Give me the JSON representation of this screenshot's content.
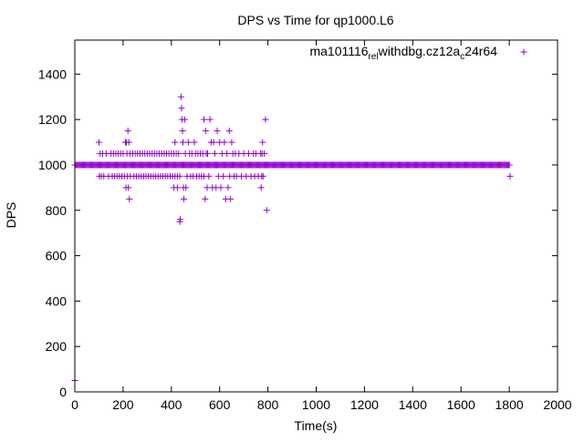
{
  "chart_data": {
    "type": "scatter",
    "title": "DPS vs Time for qp1000.L6",
    "xlabel": "Time(s)",
    "ylabel": "DPS",
    "xlim": [
      0,
      2000
    ],
    "ylim": [
      0,
      1550
    ],
    "xticks": [
      "0",
      "200",
      "400",
      "600",
      "800",
      "1000",
      "1200",
      "1400",
      "1600",
      "1800",
      "2000"
    ],
    "yticks": [
      "0",
      "200",
      "400",
      "600",
      "800",
      "1000",
      "1200",
      "1400"
    ],
    "grid": false,
    "legend_position": "top-right",
    "marker": "plus",
    "series": [
      {
        "name": "ma101116_rel_withdbg.cz12a_c24r64",
        "name_parts": [
          {
            "text": "ma101116",
            "sub": false
          },
          {
            "text": "rel",
            "sub": true
          },
          {
            "text": "withdbg.cz12a",
            "sub": false
          },
          {
            "text": "c",
            "sub": true
          },
          {
            "text": "24r64",
            "sub": false
          }
        ],
        "color": "#9400d3",
        "dense_band": {
          "x_start": 0,
          "x_end": 1800,
          "step": 4,
          "y": 1000
        },
        "points": [
          [
            0,
            50
          ],
          [
            100,
            1100
          ],
          [
            102,
            950
          ],
          [
            105,
            1050
          ],
          [
            110,
            950
          ],
          [
            115,
            1050
          ],
          [
            120,
            950
          ],
          [
            130,
            1050
          ],
          [
            140,
            950
          ],
          [
            150,
            1050
          ],
          [
            155,
            950
          ],
          [
            160,
            1050
          ],
          [
            165,
            950
          ],
          [
            170,
            1050
          ],
          [
            175,
            950
          ],
          [
            180,
            1050
          ],
          [
            185,
            950
          ],
          [
            190,
            1050
          ],
          [
            195,
            950
          ],
          [
            200,
            1050
          ],
          [
            205,
            950
          ],
          [
            210,
            1100
          ],
          [
            212,
            900
          ],
          [
            214,
            1100
          ],
          [
            216,
            1050
          ],
          [
            218,
            950
          ],
          [
            220,
            1150
          ],
          [
            222,
            900
          ],
          [
            224,
            1100
          ],
          [
            226,
            850
          ],
          [
            228,
            1050
          ],
          [
            230,
            950
          ],
          [
            240,
            1050
          ],
          [
            245,
            950
          ],
          [
            250,
            1050
          ],
          [
            255,
            950
          ],
          [
            260,
            1050
          ],
          [
            265,
            950
          ],
          [
            270,
            1050
          ],
          [
            275,
            950
          ],
          [
            280,
            1050
          ],
          [
            285,
            950
          ],
          [
            290,
            1050
          ],
          [
            295,
            950
          ],
          [
            300,
            1050
          ],
          [
            305,
            950
          ],
          [
            310,
            1050
          ],
          [
            315,
            950
          ],
          [
            320,
            1050
          ],
          [
            325,
            950
          ],
          [
            330,
            1050
          ],
          [
            335,
            950
          ],
          [
            340,
            1050
          ],
          [
            345,
            950
          ],
          [
            350,
            1050
          ],
          [
            355,
            950
          ],
          [
            360,
            1050
          ],
          [
            365,
            950
          ],
          [
            370,
            1050
          ],
          [
            375,
            950
          ],
          [
            380,
            1050
          ],
          [
            385,
            950
          ],
          [
            390,
            1050
          ],
          [
            395,
            950
          ],
          [
            400,
            1050
          ],
          [
            405,
            950
          ],
          [
            410,
            1050
          ],
          [
            415,
            950
          ],
          [
            420,
            1050
          ],
          [
            425,
            950
          ],
          [
            430,
            1050
          ],
          [
            435,
            950
          ],
          [
            410,
            900
          ],
          [
            415,
            1100
          ],
          [
            425,
            900
          ],
          [
            435,
            750
          ],
          [
            437,
            760
          ],
          [
            440,
            1300
          ],
          [
            442,
            1250
          ],
          [
            444,
            1200
          ],
          [
            446,
            1150
          ],
          [
            448,
            1100
          ],
          [
            450,
            900
          ],
          [
            452,
            850
          ],
          [
            455,
            1200
          ],
          [
            458,
            1050
          ],
          [
            460,
            900
          ],
          [
            465,
            950
          ],
          [
            470,
            1100
          ],
          [
            475,
            1050
          ],
          [
            480,
            950
          ],
          [
            485,
            1050
          ],
          [
            490,
            950
          ],
          [
            495,
            1100
          ],
          [
            500,
            1050
          ],
          [
            505,
            950
          ],
          [
            510,
            1050
          ],
          [
            515,
            950
          ],
          [
            520,
            1050
          ],
          [
            525,
            950
          ],
          [
            530,
            1050
          ],
          [
            535,
            950
          ],
          [
            535,
            1200
          ],
          [
            540,
            850
          ],
          [
            542,
            1150
          ],
          [
            545,
            1050
          ],
          [
            548,
            900
          ],
          [
            550,
            1050
          ],
          [
            555,
            950
          ],
          [
            560,
            1200
          ],
          [
            565,
            1100
          ],
          [
            570,
            900
          ],
          [
            575,
            1100
          ],
          [
            580,
            1050
          ],
          [
            585,
            900
          ],
          [
            590,
            1150
          ],
          [
            595,
            950
          ],
          [
            600,
            1100
          ],
          [
            605,
            900
          ],
          [
            610,
            1050
          ],
          [
            615,
            950
          ],
          [
            620,
            1100
          ],
          [
            625,
            850
          ],
          [
            630,
            1050
          ],
          [
            635,
            900
          ],
          [
            640,
            1150
          ],
          [
            642,
            950
          ],
          [
            645,
            850
          ],
          [
            650,
            1100
          ],
          [
            655,
            1050
          ],
          [
            660,
            950
          ],
          [
            665,
            1050
          ],
          [
            670,
            950
          ],
          [
            680,
            1050
          ],
          [
            690,
            950
          ],
          [
            700,
            1050
          ],
          [
            710,
            950
          ],
          [
            720,
            1050
          ],
          [
            730,
            950
          ],
          [
            740,
            1050
          ],
          [
            745,
            950
          ],
          [
            750,
            1050
          ],
          [
            760,
            950
          ],
          [
            770,
            1050
          ],
          [
            772,
            900
          ],
          [
            774,
            950
          ],
          [
            776,
            1050
          ],
          [
            778,
            1100
          ],
          [
            780,
            950
          ],
          [
            785,
            1050
          ],
          [
            790,
            1200
          ],
          [
            795,
            800
          ],
          [
            1800,
            1000
          ],
          [
            1803,
            950
          ]
        ]
      }
    ]
  }
}
